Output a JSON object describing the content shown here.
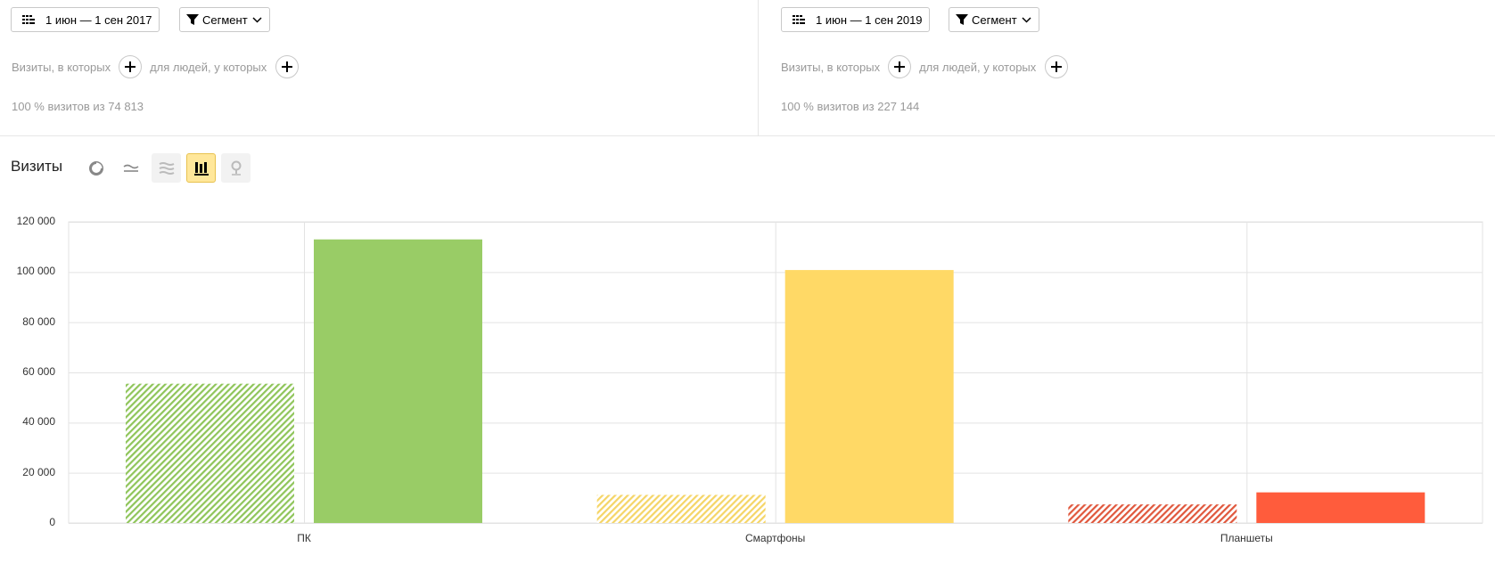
{
  "segments": [
    {
      "date_label": "1 июн — 1 сен 2017",
      "segment_label": "Сегмент",
      "visits_cond": "Визиты, в которых",
      "people_cond": "для людей, у которых",
      "percent_text": "100 % визитов из 74 813"
    },
    {
      "date_label": "1 июн — 1 сен 2019",
      "segment_label": "Сегмент",
      "visits_cond": "Визиты, в которых",
      "people_cond": "для людей, у которых",
      "percent_text": "100 % визитов из 227 144"
    }
  ],
  "report": {
    "title": "Визиты",
    "view_buttons": [
      {
        "icon": "pie-chart-icon",
        "state": "normal"
      },
      {
        "icon": "line-chart-icon",
        "state": "normal"
      },
      {
        "icon": "area-chart-icon",
        "state": "disabled"
      },
      {
        "icon": "bar-chart-icon",
        "state": "active"
      },
      {
        "icon": "map-pin-icon",
        "state": "disabled"
      }
    ]
  },
  "chart_data": {
    "type": "bar",
    "categories": [
      "ПК",
      "Смартфоны",
      "Планшеты"
    ],
    "series": [
      {
        "values": [
          55500,
          11200,
          7400
        ],
        "pattern": "hatched"
      },
      {
        "values": [
          113000,
          100800,
          12200
        ],
        "pattern": "solid"
      }
    ],
    "category_colors": [
      "#99cc66",
      "#ffd966",
      "#ff5c3c"
    ],
    "hatch_colors": [
      "#8fc55a",
      "#f5d566",
      "#e0573c"
    ],
    "ylim": [
      0,
      120000
    ],
    "yticks": [
      0,
      20000,
      40000,
      60000,
      80000,
      100000,
      120000
    ],
    "ytick_labels": [
      "0",
      "20 000",
      "40 000",
      "60 000",
      "80 000",
      "100 000",
      "120 000"
    ],
    "grid": true
  }
}
